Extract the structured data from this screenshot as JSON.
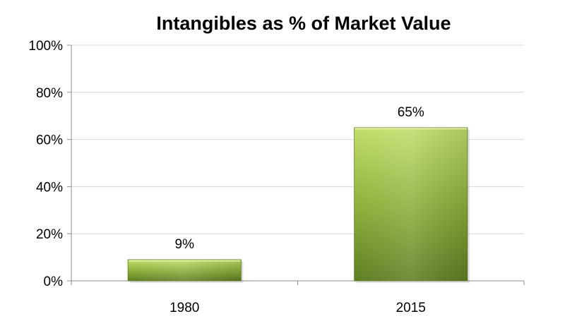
{
  "chart_data": {
    "type": "bar",
    "title": "Intangibles as % of Market Value",
    "xlabel": "",
    "ylabel": "",
    "categories": [
      "1980",
      "2015"
    ],
    "values": [
      9,
      65
    ],
    "data_labels": [
      "9%",
      "65%"
    ],
    "ylim": [
      0,
      100
    ],
    "y_ticks": [
      0,
      20,
      40,
      60,
      80,
      100
    ],
    "y_tick_labels": [
      "0%",
      "20%",
      "40%",
      "60%",
      "80%",
      "100%"
    ],
    "grid": true,
    "legend": "none",
    "colors": {
      "bar_light": "#c2dd6a",
      "bar_mid": "#8fb13c",
      "bar_dark": "#5f7e22",
      "grid": "#d9d9d9",
      "axis": "#8c8c8c"
    }
  }
}
